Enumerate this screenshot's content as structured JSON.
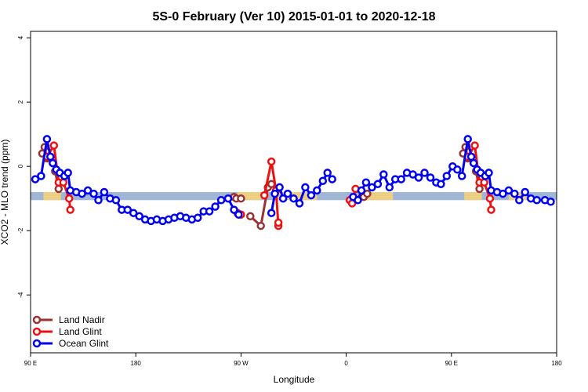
{
  "chart_data": {
    "type": "line",
    "title": "5S-0 February (Ver 10)   2015-01-01 to 2020-12-18",
    "xlabel": "Longitude",
    "ylabel": "XCO2 - MLO trend (ppm)",
    "xlim": [
      90,
      540
    ],
    "ylim": [
      -5.8,
      4.2
    ],
    "x_ticks": [
      {
        "value": 90,
        "label": "90 E"
      },
      {
        "value": 180,
        "label": "180"
      },
      {
        "value": 270,
        "label": "90 W"
      },
      {
        "value": 360,
        "label": "0"
      },
      {
        "value": 450,
        "label": "90 E"
      },
      {
        "value": 540,
        "label": "180"
      }
    ],
    "y_ticks": [
      -4,
      -2,
      0,
      2,
      4
    ],
    "band": {
      "y_min": -1.05,
      "y_max": -0.8,
      "color": "#9fb6d6"
    },
    "land_segments": [
      {
        "x_start": 101,
        "x_end": 116
      },
      {
        "x_start": 267,
        "x_end": 287
      },
      {
        "x_start": 300,
        "x_end": 335
      },
      {
        "x_start": 370,
        "x_end": 400
      },
      {
        "x_start": 461,
        "x_end": 476
      },
      {
        "x_start": 499,
        "x_end": 514
      }
    ],
    "land_color": "#f5d27a",
    "legend_position": "bottom-left",
    "series": [
      {
        "name": "Land Nadir",
        "color": "#993333",
        "segments": [
          [
            [
              100,
              0.4
            ],
            [
              102,
              0.6
            ],
            [
              104,
              0.25
            ],
            [
              107,
              0.3
            ],
            [
              109,
              0.2
            ],
            [
              111,
              -0.15
            ],
            [
              114,
              -0.7
            ]
          ],
          [
            [
              264,
              -0.95
            ],
            [
              266,
              -1.0
            ],
            [
              270,
              -1.0
            ]
          ],
          [
            [
              278,
              -1.55
            ],
            [
              287,
              -1.85
            ],
            [
              293,
              -0.65
            ],
            [
              296,
              -0.55
            ]
          ],
          [
            [
              375,
              -0.95
            ],
            [
              378,
              -0.85
            ]
          ],
          [
            [
              460,
              0.4
            ],
            [
              462,
              0.6
            ],
            [
              464,
              0.25
            ],
            [
              467,
              0.3
            ],
            [
              469,
              0.2
            ],
            [
              471,
              -0.15
            ],
            [
              474,
              -0.7
            ]
          ]
        ]
      },
      {
        "name": "Land Glint",
        "color": "#ee1111",
        "segments": [
          [
            [
              104,
              0.3
            ],
            [
              110,
              0.65
            ],
            [
              114,
              -0.5
            ],
            [
              118,
              -0.5
            ],
            [
              123,
              -1.0
            ],
            [
              124,
              -1.35
            ]
          ],
          [
            [
              267,
              -1.45
            ],
            [
              270,
              -1.5
            ]
          ],
          [
            [
              290,
              -0.9
            ],
            [
              296,
              0.15
            ],
            [
              300,
              -0.75
            ],
            [
              302,
              -1.85
            ],
            [
              302,
              -1.75
            ]
          ],
          [
            [
              363,
              -1.05
            ],
            [
              365,
              -1.15
            ],
            [
              368,
              -0.7
            ]
          ],
          [
            [
              464,
              0.3
            ],
            [
              470,
              0.65
            ],
            [
              474,
              -0.5
            ],
            [
              478,
              -0.5
            ],
            [
              483,
              -1.0
            ],
            [
              484,
              -1.35
            ]
          ]
        ]
      },
      {
        "name": "Ocean Glint",
        "color": "#0000ee",
        "segments": [
          [
            [
              94,
              -0.4
            ],
            [
              99,
              -0.3
            ],
            [
              104,
              0.85
            ],
            [
              107,
              0.3
            ],
            [
              109,
              0.1
            ],
            [
              112,
              -0.1
            ],
            [
              115,
              -0.2
            ],
            [
              119,
              -0.3
            ],
            [
              122,
              -0.2
            ],
            [
              124,
              -0.75
            ],
            [
              129,
              -0.8
            ],
            [
              134,
              -0.85
            ],
            [
              139,
              -0.75
            ],
            [
              144,
              -0.85
            ],
            [
              148,
              -1.05
            ],
            [
              153,
              -0.8
            ],
            [
              158,
              -1.0
            ],
            [
              163,
              -1.05
            ],
            [
              168,
              -1.35
            ],
            [
              173,
              -1.35
            ],
            [
              178,
              -1.45
            ],
            [
              183,
              -1.55
            ],
            [
              188,
              -1.65
            ],
            [
              193,
              -1.7
            ],
            [
              198,
              -1.65
            ],
            [
              203,
              -1.7
            ],
            [
              208,
              -1.65
            ],
            [
              213,
              -1.6
            ],
            [
              218,
              -1.55
            ],
            [
              223,
              -1.6
            ],
            [
              228,
              -1.65
            ],
            [
              233,
              -1.6
            ],
            [
              238,
              -1.4
            ],
            [
              243,
              -1.4
            ],
            [
              248,
              -1.25
            ],
            [
              253,
              -1.05
            ],
            [
              259,
              -1.0
            ],
            [
              264,
              -1.35
            ],
            [
              268,
              -1.5
            ]
          ],
          [
            [
              296,
              -1.45
            ],
            [
              299,
              -0.85
            ],
            [
              303,
              -0.65
            ],
            [
              306,
              -1.0
            ],
            [
              310,
              -0.85
            ],
            [
              315,
              -1.0
            ],
            [
              320,
              -1.15
            ],
            [
              325,
              -0.65
            ],
            [
              330,
              -0.9
            ],
            [
              335,
              -0.75
            ],
            [
              340,
              -0.45
            ],
            [
              344,
              -0.2
            ],
            [
              348,
              -0.4
            ]
          ],
          [
            [
              366,
              -0.95
            ],
            [
              370,
              -1.05
            ],
            [
              373,
              -0.75
            ],
            [
              377,
              -0.5
            ],
            [
              382,
              -0.65
            ],
            [
              387,
              -0.55
            ],
            [
              392,
              -0.25
            ],
            [
              397,
              -0.65
            ],
            [
              402,
              -0.4
            ],
            [
              407,
              -0.4
            ],
            [
              412,
              -0.2
            ],
            [
              417,
              -0.25
            ],
            [
              422,
              -0.35
            ],
            [
              427,
              -0.2
            ],
            [
              432,
              -0.35
            ],
            [
              437,
              -0.5
            ],
            [
              441,
              -0.55
            ],
            [
              446,
              -0.3
            ],
            [
              451,
              0.0
            ],
            [
              455,
              -0.1
            ],
            [
              459,
              -0.3
            ],
            [
              464,
              0.85
            ],
            [
              467,
              0.3
            ],
            [
              469,
              0.1
            ],
            [
              472,
              -0.1
            ],
            [
              475,
              -0.2
            ],
            [
              479,
              -0.3
            ],
            [
              482,
              -0.2
            ],
            [
              484,
              -0.75
            ],
            [
              489,
              -0.8
            ],
            [
              494,
              -0.85
            ],
            [
              499,
              -0.75
            ],
            [
              504,
              -0.85
            ],
            [
              508,
              -1.05
            ],
            [
              513,
              -0.8
            ],
            [
              518,
              -1.0
            ],
            [
              523,
              -1.05
            ],
            [
              530,
              -1.05
            ],
            [
              535,
              -1.1
            ]
          ]
        ]
      }
    ]
  }
}
